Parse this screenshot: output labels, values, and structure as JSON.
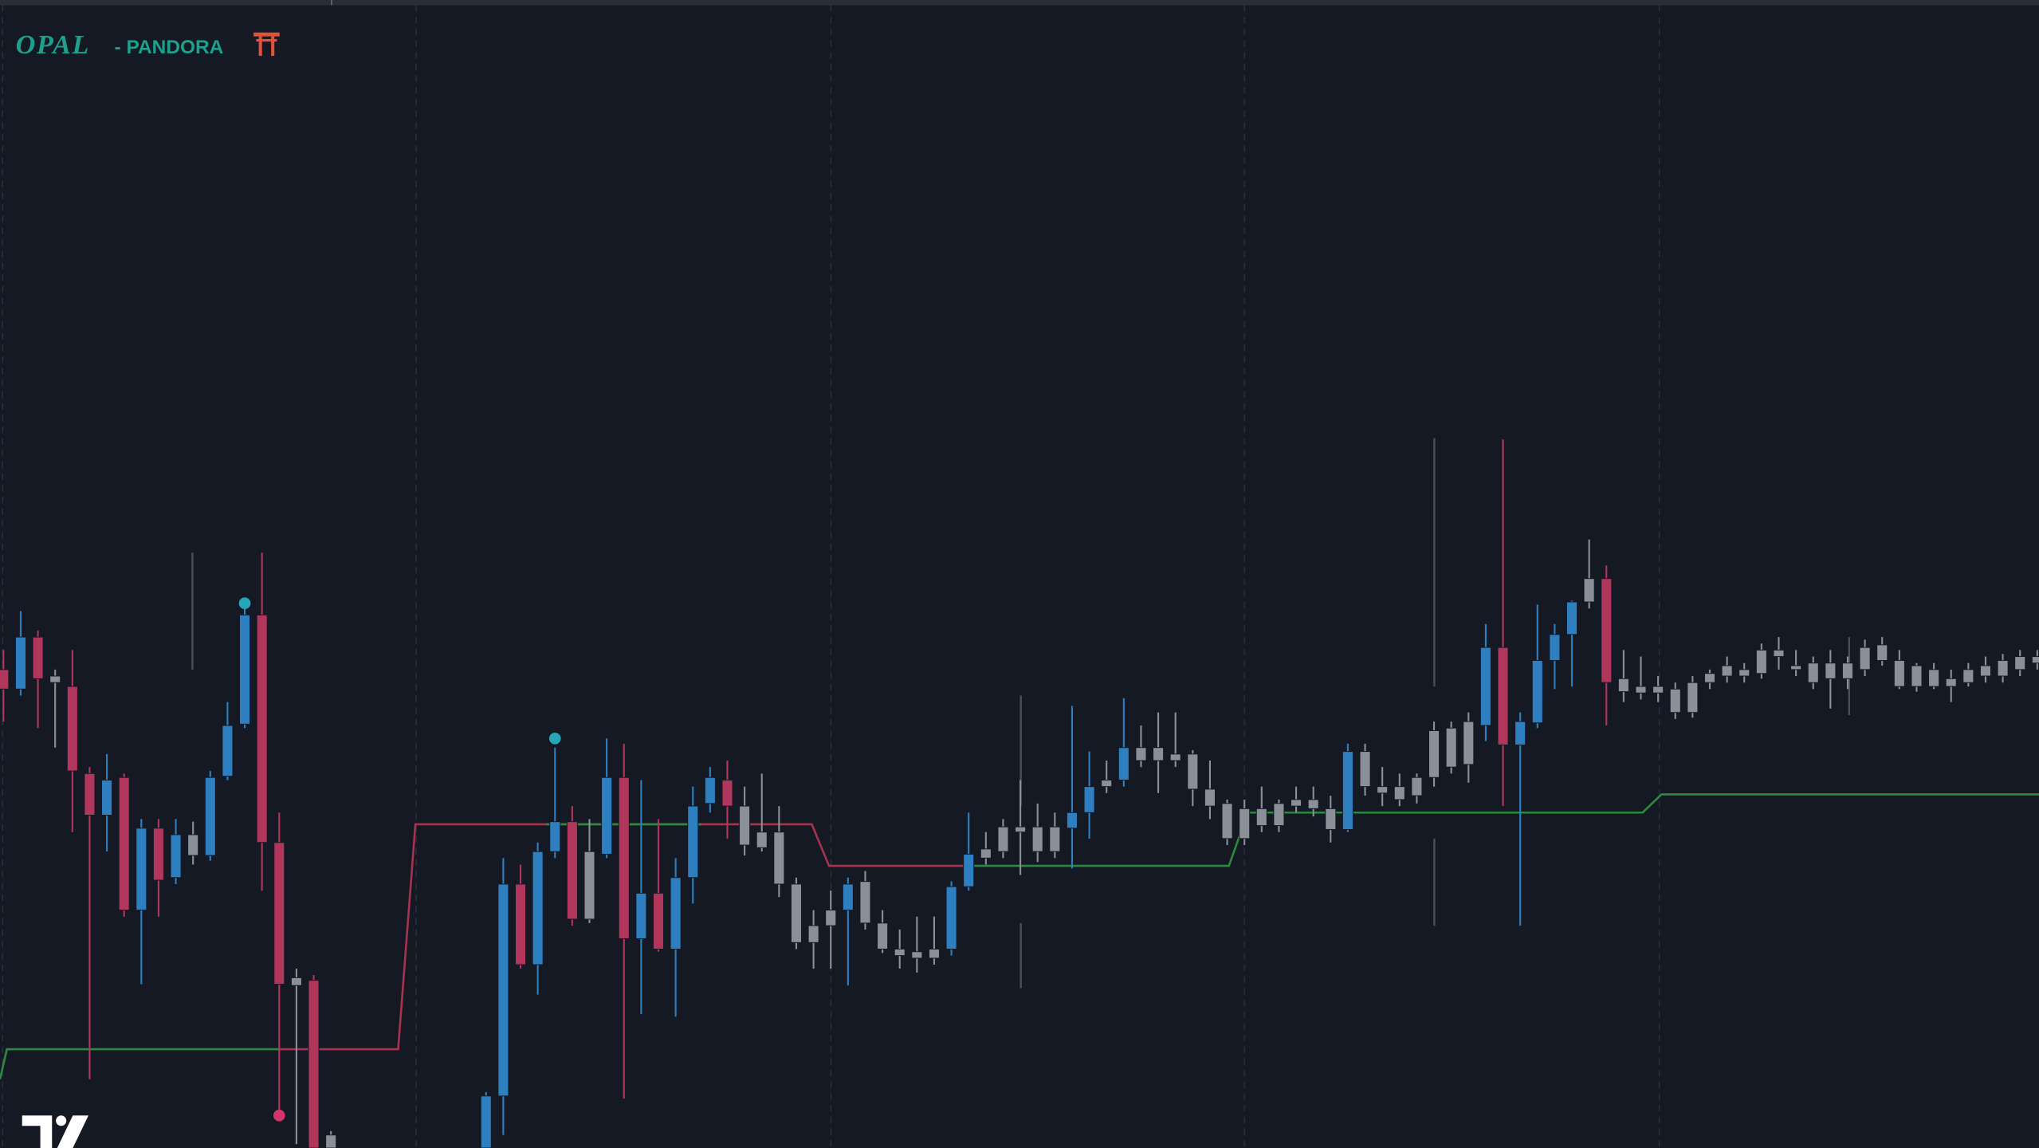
{
  "chart_data": {
    "type": "candlestick",
    "title": "OPAL",
    "subtitle": "- PANDORA",
    "xlim": [
      -0.2,
      118.1
    ],
    "ylim": [
      0,
      883
    ],
    "open": [
      368,
      353,
      393,
      358,
      355,
      288,
      256,
      285,
      183,
      246,
      208,
      225,
      225,
      286,
      326,
      410,
      235,
      125,
      129,
      0,
      null,
      null,
      null,
      null,
      null,
      null,
      null,
      null,
      0,
      40,
      203,
      141,
      228,
      251,
      176,
      226,
      285,
      161,
      196,
      153,
      208,
      265,
      283,
      233,
      231,
      203,
      158,
      158,
      171,
      183,
      173,
      153,
      148,
      146,
      146,
      153,
      201,
      223,
      228,
      243,
      228,
      228,
      246,
      258,
      278,
      283,
      298,
      298,
      298,
      276,
      263,
      238,
      238,
      248,
      248,
      263,
      261,
      245,
      245,
      278,
      273,
      268,
      271,
      285,
      293,
      295,
      325,
      385,
      310,
      327,
      375,
      395,
      420,
      438,
      351,
      350,
      350,
      335,
      335,
      358,
      363,
      363,
      365,
      378,
      368,
      358,
      361,
      361,
      368,
      375,
      355,
      355,
      355,
      355,
      358,
      363,
      363,
      368,
      373
    ],
    "high": [
      383,
      413,
      398,
      368,
      383,
      293,
      303,
      288,
      253,
      253,
      253,
      251,
      290,
      343,
      418,
      458,
      258,
      138,
      133,
      13,
      null,
      null,
      null,
      null,
      null,
      null,
      null,
      null,
      43,
      223,
      218,
      235,
      308,
      263,
      253,
      315,
      311,
      283,
      253,
      223,
      278,
      293,
      298,
      278,
      288,
      263,
      208,
      183,
      198,
      208,
      213,
      183,
      168,
      178,
      178,
      205,
      258,
      243,
      253,
      283,
      265,
      258,
      340,
      305,
      298,
      346,
      325,
      335,
      335,
      306,
      298,
      268,
      268,
      278,
      268,
      278,
      278,
      271,
      311,
      311,
      293,
      288,
      288,
      328,
      328,
      335,
      403,
      545,
      335,
      418,
      403,
      421,
      468,
      448,
      383,
      378,
      363,
      358,
      363,
      368,
      378,
      373,
      388,
      393,
      383,
      378,
      383,
      378,
      391,
      393,
      383,
      373,
      373,
      368,
      373,
      378,
      380,
      383,
      383
    ],
    "low": [
      328,
      348,
      323,
      308,
      243,
      53,
      228,
      178,
      126,
      178,
      203,
      218,
      221,
      283,
      323,
      198,
      28,
      3,
      0,
      0,
      null,
      null,
      null,
      null,
      null,
      null,
      null,
      null,
      0,
      10,
      138,
      118,
      223,
      171,
      173,
      223,
      38,
      103,
      151,
      101,
      188,
      258,
      238,
      225,
      228,
      193,
      153,
      138,
      138,
      125,
      168,
      150,
      138,
      135,
      141,
      148,
      198,
      218,
      223,
      210,
      220,
      223,
      215,
      238,
      273,
      278,
      293,
      273,
      293,
      263,
      253,
      233,
      233,
      243,
      243,
      258,
      255,
      235,
      243,
      271,
      263,
      263,
      265,
      278,
      288,
      281,
      313,
      263,
      171,
      323,
      353,
      355,
      415,
      325,
      343,
      345,
      343,
      330,
      331,
      353,
      358,
      358,
      361,
      368,
      363,
      353,
      338,
      353,
      363,
      371,
      353,
      351,
      353,
      343,
      355,
      358,
      358,
      363,
      368
    ],
    "close": [
      353,
      393,
      361,
      363,
      290,
      256,
      283,
      183,
      246,
      206,
      241,
      241,
      285,
      325,
      410,
      235,
      126,
      131,
      0,
      10,
      null,
      null,
      null,
      null,
      null,
      null,
      null,
      null,
      40,
      203,
      141,
      228,
      251,
      176,
      228,
      285,
      161,
      196,
      153,
      208,
      263,
      285,
      263,
      263,
      243,
      243,
      203,
      171,
      183,
      203,
      205,
      173,
      153,
      151,
      153,
      201,
      226,
      230,
      247,
      247,
      247,
      247,
      258,
      278,
      283,
      308,
      308,
      308,
      303,
      303,
      276,
      265,
      261,
      261,
      265,
      268,
      268,
      261,
      305,
      305,
      278,
      278,
      285,
      321,
      323,
      328,
      385,
      310,
      328,
      375,
      395,
      420,
      438,
      358,
      361,
      355,
      355,
      353,
      358,
      365,
      371,
      368,
      383,
      383,
      371,
      373,
      373,
      373,
      385,
      387,
      375,
      371,
      368,
      361,
      368,
      371,
      375,
      378,
      378
    ],
    "colors": [
      "#b0365c",
      "#2e7fc0",
      "#b0365c",
      "#8b8f98",
      "#b0365c",
      "#b0365c",
      "#2e7fc0",
      "#b0365c",
      "#2e7fc0",
      "#b0365c",
      "#2e7fc0",
      "#8b8f98",
      "#2e7fc0",
      "#2e7fc0",
      "#2e7fc0",
      "#b0365c",
      "#b0365c",
      "#8b8f98",
      "#b0365c",
      "#8b8f98",
      null,
      null,
      null,
      null,
      null,
      null,
      null,
      null,
      "#2e7fc0",
      "#2e7fc0",
      "#b0365c",
      "#2e7fc0",
      "#2e7fc0",
      "#b0365c",
      "#8b8f98",
      "#2e7fc0",
      "#b0365c",
      "#2e7fc0",
      "#b0365c",
      "#2e7fc0",
      "#2e7fc0",
      "#2e7fc0",
      "#b0365c",
      "#8b8f98",
      "#8b8f98",
      "#8b8f98",
      "#8b8f98",
      "#8b8f98",
      "#8b8f98",
      "#2e7fc0",
      "#8b8f98",
      "#8b8f98",
      "#8b8f98",
      "#8b8f98",
      "#8b8f98",
      "#2e7fc0",
      "#2e7fc0",
      "#8b8f98",
      "#8b8f98",
      "#8b8f98",
      "#8b8f98",
      "#8b8f98",
      "#2e7fc0",
      "#2e7fc0",
      "#8b8f98",
      "#2e7fc0",
      "#8b8f98",
      "#8b8f98",
      "#8b8f98",
      "#8b8f98",
      "#8b8f98",
      "#8b8f98",
      "#8b8f98",
      "#8b8f98",
      "#8b8f98",
      "#8b8f98",
      "#8b8f98",
      "#8b8f98",
      "#2e7fc0",
      "#8b8f98",
      "#8b8f98",
      "#8b8f98",
      "#8b8f98",
      "#8b8f98",
      "#8b8f98",
      "#8b8f98",
      "#2e7fc0",
      "#b0365c",
      "#2e7fc0",
      "#2e7fc0",
      "#2e7fc0",
      "#2e7fc0",
      "#8b8f98",
      "#b0365c",
      "#8b8f98",
      "#8b8f98",
      "#8b8f98",
      "#8b8f98",
      "#8b8f98",
      "#8b8f98",
      "#8b8f98",
      "#8b8f98",
      "#8b8f98",
      "#8b8f98",
      "#8b8f98",
      "#8b8f98",
      "#8b8f98",
      "#8b8f98",
      "#8b8f98",
      "#8b8f98",
      "#8b8f98",
      "#8b8f98",
      "#8b8f98",
      "#8b8f98",
      "#8b8f98",
      "#8b8f98",
      "#8b8f98",
      "#8b8f98",
      "#8b8f98"
    ],
    "lines": [
      {
        "color": "#2b8a3e",
        "x": [
          -0.2,
          0.2,
          16
        ],
        "values": [
          53,
          76,
          76
        ]
      },
      {
        "color": "#a8324f",
        "x": [
          16,
          22.9,
          23.9,
          46.9,
          47.9,
          56
        ],
        "values": [
          76,
          76,
          249,
          249,
          217,
          217
        ]
      },
      {
        "color": "#2b8a3e",
        "x": [
          31.5,
          40.5
        ],
        "values": [
          249,
          249
        ]
      },
      {
        "color": "#2b8a3e",
        "x": [
          56,
          71.1,
          72.2,
          95.1,
          96.2,
          118.1
        ],
        "values": [
          217,
          217,
          258,
          258,
          272,
          272
        ]
      }
    ],
    "markers": [
      {
        "x": 14,
        "value": 419,
        "color": "#26a6b8"
      },
      {
        "x": 32,
        "value": 315,
        "color": "#26a6b8"
      },
      {
        "x": 16,
        "value": 25,
        "color": "#d6336c"
      }
    ]
  }
}
